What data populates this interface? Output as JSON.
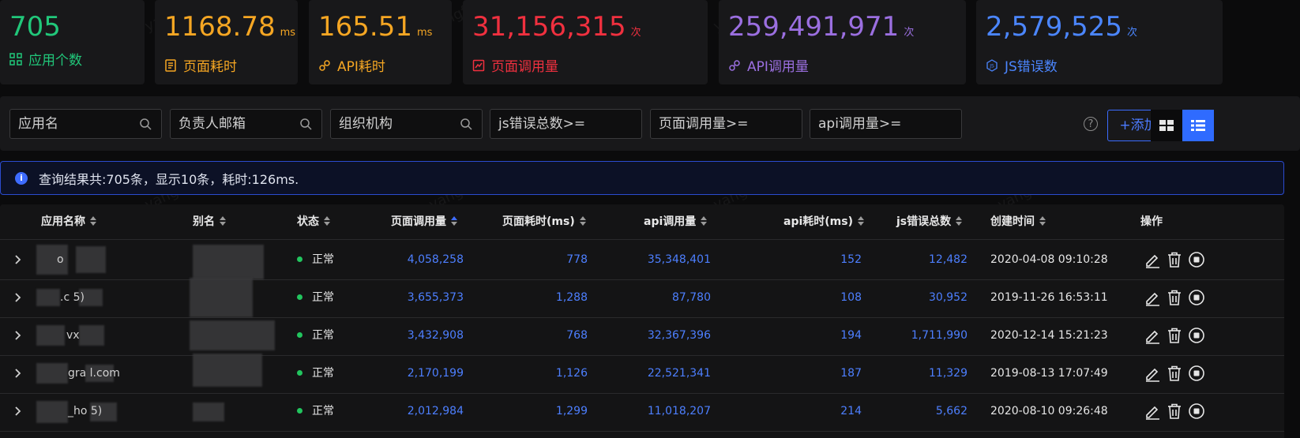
{
  "stats": [
    {
      "value": "705",
      "unit": "",
      "label": "应用个数",
      "color": "#21c77a",
      "icon": "grid-icon"
    },
    {
      "value": "1168.78",
      "unit": "ms",
      "label": "页面耗时",
      "color": "#f5a623",
      "icon": "page-icon"
    },
    {
      "value": "165.51",
      "unit": "ms",
      "label": "API耗时",
      "color": "#f5a623",
      "icon": "api-icon"
    },
    {
      "value": "31,156,315",
      "unit": "次",
      "label": "页面调用量",
      "color": "#f0303f",
      "icon": "chart-icon"
    },
    {
      "value": "259,491,971",
      "unit": "次",
      "label": "API调用量",
      "color": "#9b6fe0",
      "icon": "api-icon"
    },
    {
      "value": "2,579,525",
      "unit": "次",
      "label": "JS错误数",
      "color": "#4b86ff",
      "icon": "js-icon"
    }
  ],
  "filters": {
    "app_name": "应用名",
    "owner_email": "负责人邮箱",
    "org": "组织机构",
    "js_errors": "js错误总数>=",
    "page_calls": "页面调用量>=",
    "api_calls": "api调用量>="
  },
  "help_label": "?",
  "add_button": "+添加应用",
  "banner": "查询结果共:705条，显示10条，耗时:126ms.",
  "banner_icon": "i",
  "table": {
    "headers": [
      "应用名称",
      "别名",
      "状态",
      "页面调用量",
      "页面耗时(ms)",
      "api调用量",
      "api耗时(ms)",
      "js错误总数",
      "创建时间",
      "操作"
    ],
    "rows": [
      {
        "name": "o",
        "alias": "",
        "status": "正常",
        "page_calls": "4,058,258",
        "page_time": "778",
        "api_calls": "35,348,401",
        "api_time": "152",
        "js_errors": "12,482",
        "created": "2020-04-08 09:10:28"
      },
      {
        "name": ".c      5)",
        "alias": "",
        "status": "正常",
        "page_calls": "3,655,373",
        "page_time": "1,288",
        "api_calls": "87,780",
        "api_time": "108",
        "js_errors": "30,952",
        "created": "2019-11-26 16:53:11"
      },
      {
        "name": "vx",
        "alias": "",
        "status": "正常",
        "page_calls": "3,432,908",
        "page_time": "768",
        "api_calls": "32,367,396",
        "api_time": "194",
        "js_errors": "1,711,990",
        "created": "2020-12-14 15:21:23"
      },
      {
        "name": "gra      l.com",
        "alias": "",
        "status": "正常",
        "page_calls": "2,170,199",
        "page_time": "1,126",
        "api_calls": "22,521,341",
        "api_time": "187",
        "js_errors": "11,329",
        "created": "2019-08-13 17:07:49"
      },
      {
        "name": "_ho      5)",
        "alias": "",
        "status": "正常",
        "page_calls": "2,012,984",
        "page_time": "1,299",
        "api_calls": "11,018,207",
        "api_time": "214",
        "js_errors": "5,662",
        "created": "2020-08-10 09:26:48"
      }
    ]
  },
  "watermark": "yangfan52"
}
